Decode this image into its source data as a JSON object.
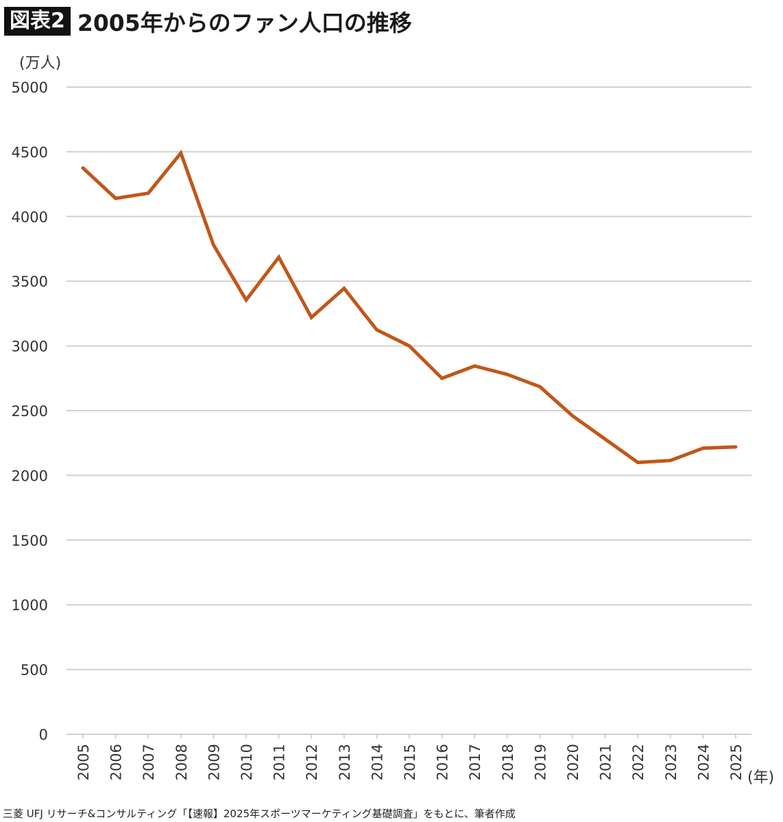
{
  "header": {
    "badge": "図表2",
    "title": "2005年からのファン人口の推移"
  },
  "colors": {
    "line": "#C0571A",
    "grid": "#d0d0d0",
    "badge_bg": "#111111"
  },
  "chart_data": {
    "type": "line",
    "title": "2005年からのファン人口の推移",
    "ylabel": "(万人)",
    "xlabel": "(年)",
    "ylim": [
      0,
      5000
    ],
    "yticks": [
      0,
      500,
      1000,
      1500,
      2000,
      2500,
      3000,
      3500,
      4000,
      4500,
      5000
    ],
    "grid": true,
    "categories": [
      "2005",
      "2006",
      "2007",
      "2008",
      "2009",
      "2010",
      "2011",
      "2012",
      "2013",
      "2014",
      "2015",
      "2016",
      "2017",
      "2018",
      "2019",
      "2020",
      "2021",
      "2022",
      "2023",
      "2024",
      "2025"
    ],
    "series": [
      {
        "values": [
          4375,
          4140,
          4180,
          4490,
          3780,
          3355,
          3685,
          3220,
          3445,
          3125,
          3000,
          2750,
          2845,
          2780,
          2685,
          2460,
          2280,
          2100,
          2115,
          2210,
          2220
        ]
      }
    ]
  },
  "source": "三菱 UFJ リサーチ&コンサルティング「【速報】2025年スポーツマーケティング基礎調査」をもとに、筆者作成"
}
